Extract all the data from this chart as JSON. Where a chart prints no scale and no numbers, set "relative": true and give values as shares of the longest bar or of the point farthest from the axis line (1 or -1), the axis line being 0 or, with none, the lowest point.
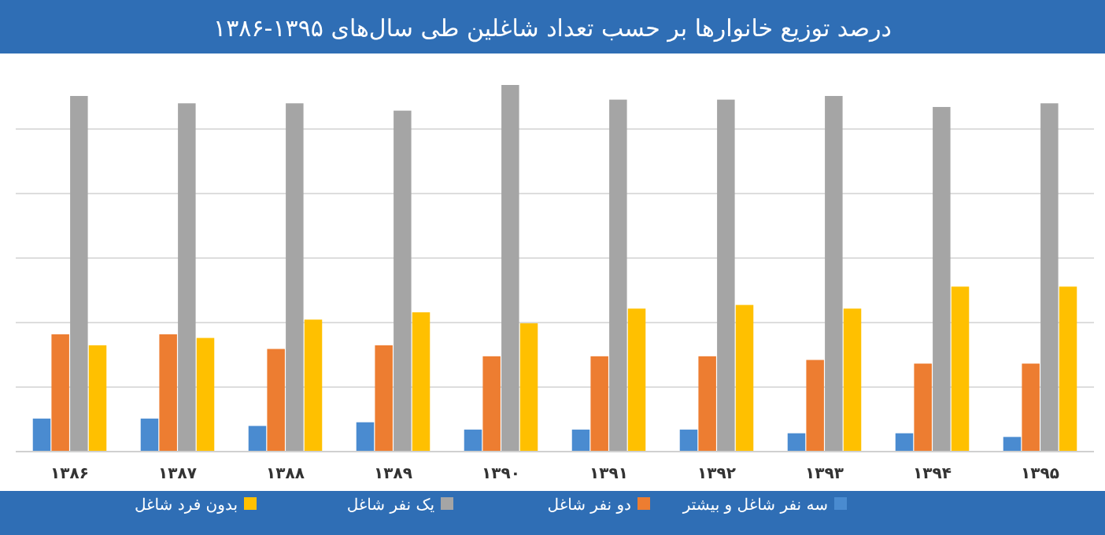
{
  "chart_data": {
    "type": "bar",
    "title": "درصد توزیع خانوارها بر حسب تعداد شاغلین طی سال‌های ۱۳۹۵-۱۳۸۶",
    "relative": true,
    "grid": true,
    "legend": "bottom",
    "categories": [
      "۱۳۸۶",
      "۱۳۸۷",
      "۱۳۸۸",
      "۱۳۸۹",
      "۱۳۹۰",
      "۱۳۹۱",
      "۱۳۹۲",
      "۱۳۹۳",
      "۱۳۹۴",
      "۱۳۹۵"
    ],
    "series": [
      {
        "name": "سه نفر شاغل و بیشتر",
        "color": "#4a8bd0",
        "values": [
          0.09,
          0.09,
          0.07,
          0.08,
          0.06,
          0.06,
          0.06,
          0.05,
          0.05,
          0.04
        ]
      },
      {
        "name": "دو نفر شاغل",
        "color": "#ed7d31",
        "values": [
          0.32,
          0.32,
          0.28,
          0.29,
          0.26,
          0.26,
          0.26,
          0.25,
          0.24,
          0.24
        ]
      },
      {
        "name": "یک نفر شاغل",
        "color": "#a5a5a5",
        "values": [
          0.97,
          0.95,
          0.95,
          0.93,
          1,
          0.96,
          0.96,
          0.97,
          0.94,
          0.95
        ]
      },
      {
        "name": "بدون فرد شاغل",
        "color": "#ffc000",
        "values": [
          0.29,
          0.31,
          0.36,
          0.38,
          0.35,
          0.39,
          0.4,
          0.39,
          0.45,
          0.45
        ]
      }
    ]
  }
}
